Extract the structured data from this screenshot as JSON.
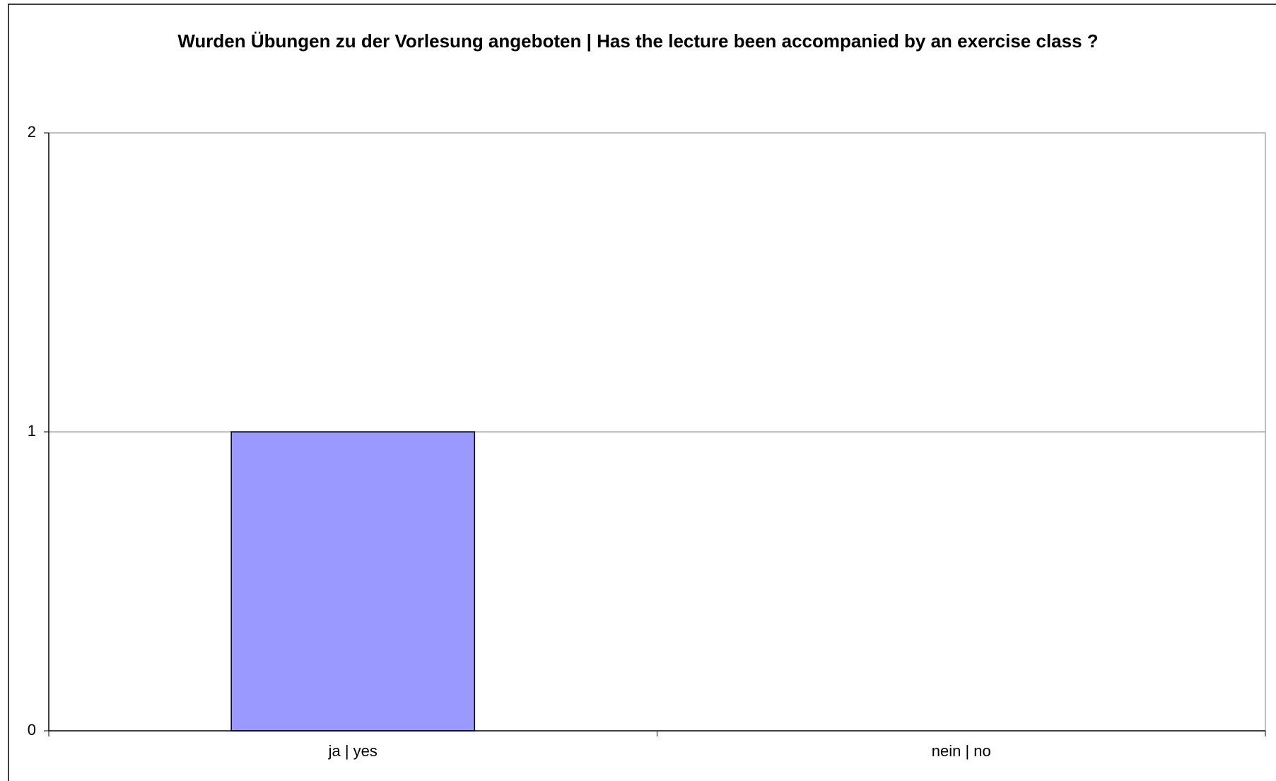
{
  "chart_data": {
    "type": "bar",
    "title": "Wurden Übungen zu der Vorlesung angeboten | Has the lecture been accompanied by an exercise class ?",
    "categories": [
      "ja | yes",
      "nein | no"
    ],
    "values": [
      1,
      0
    ],
    "color": "#9999ff",
    "ylim": [
      0,
      2
    ],
    "yticks": [
      0,
      1,
      2
    ],
    "grid": true
  }
}
